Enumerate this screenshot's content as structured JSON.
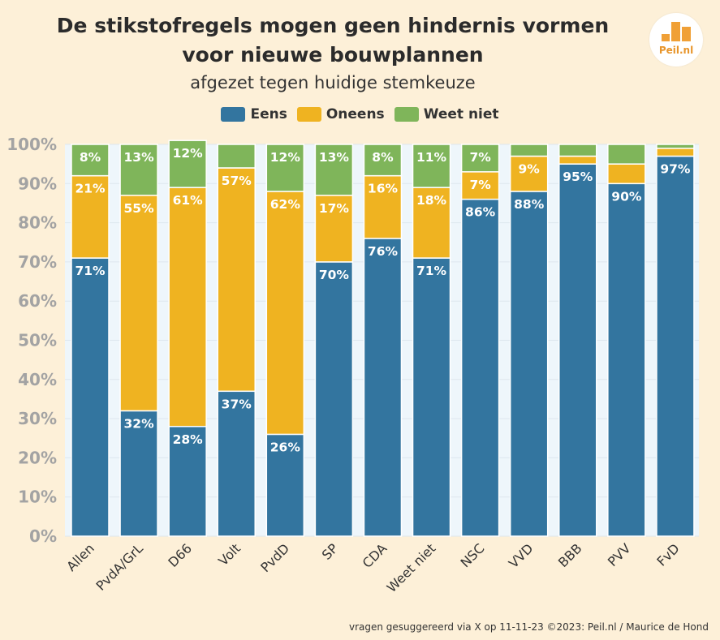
{
  "header": {
    "title": "De stikstofregels mogen geen hindernis vormen voor nieuwe bouwplannen",
    "subtitle": "afgezet tegen huidige stemkeuze"
  },
  "logo": {
    "text": "Peil.nl",
    "color": "#f0a036"
  },
  "footer": {
    "credit": "vragen gesuggereerd via X op 11-11-23 ©2023: Peil.nl / Maurice de Hond"
  },
  "colors": {
    "eens": "#33759f",
    "oneens": "#efb321",
    "weet_niet": "#7fb55a",
    "plot_bg": "#eef6fb"
  },
  "chart_data": {
    "type": "bar",
    "stacked": true,
    "title": "De stikstofregels mogen geen hindernis vormen voor nieuwe bouwplannen",
    "subtitle": "afgezet tegen huidige stemkeuze",
    "categories": [
      "Allen",
      "PvdA/GrL",
      "D66",
      "Volt",
      "PvdD",
      "SP",
      "CDA",
      "Weet niet",
      "NSC",
      "VVD",
      "BBB",
      "PVV",
      "FvD"
    ],
    "series": [
      {
        "name": "Eens",
        "color": "#33759f",
        "values": [
          71,
          32,
          28,
          37,
          26,
          70,
          76,
          71,
          86,
          88,
          95,
          90,
          97
        ],
        "labels": [
          "71%",
          "32%",
          "28%",
          "37%",
          "26%",
          "70%",
          "76%",
          "71%",
          "86%",
          "88%",
          "95%",
          "90%",
          "97%"
        ]
      },
      {
        "name": "Oneens",
        "color": "#efb321",
        "values": [
          21,
          55,
          61,
          57,
          62,
          17,
          16,
          18,
          7,
          9,
          2,
          5,
          2
        ],
        "labels": [
          "21%",
          "55%",
          "61%",
          "57%",
          "62%",
          "17%",
          "16%",
          "18%",
          "7%",
          "9%",
          "",
          "",
          ""
        ]
      },
      {
        "name": "Weet niet",
        "color": "#7fb55a",
        "values": [
          8,
          13,
          12,
          6,
          12,
          13,
          8,
          11,
          7,
          3,
          3,
          5,
          1
        ],
        "labels": [
          "8%",
          "13%",
          "12%",
          "",
          "12%",
          "13%",
          "8%",
          "11%",
          "7%",
          "",
          "",
          "",
          ""
        ]
      }
    ],
    "y_ticks": [
      "0%",
      "10%",
      "20%",
      "30%",
      "40%",
      "50%",
      "60%",
      "70%",
      "80%",
      "90%",
      "100%"
    ],
    "ylim": [
      0,
      100
    ],
    "legend": "top-center",
    "grid": true
  }
}
